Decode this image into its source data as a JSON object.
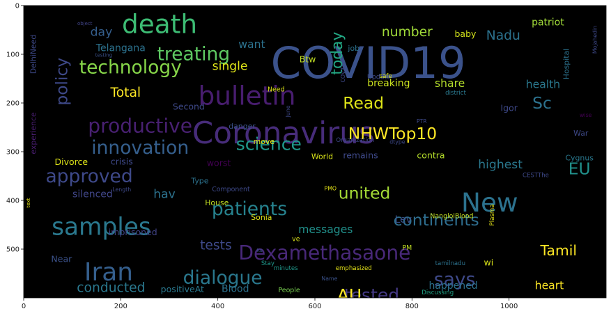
{
  "chart_data": {
    "type": "wordcloud",
    "background": "#000000",
    "xlim": [
      0,
      1200
    ],
    "ylim": [
      600,
      0
    ],
    "x_ticks": [
      0,
      200,
      400,
      600,
      800,
      1000
    ],
    "y_ticks": [
      0,
      100,
      200,
      300,
      400,
      500
    ],
    "grid": false,
    "words": [
      {
        "text": "COVID19",
        "x": 710,
        "y": 118,
        "size": 80,
        "color": "#3b528b"
      },
      {
        "text": "Coronavirus",
        "x": 535,
        "y": 262,
        "size": 56,
        "color": "#472c7a"
      },
      {
        "text": "death",
        "x": 280,
        "y": 38,
        "size": 48,
        "color": "#3dbc74"
      },
      {
        "text": "bulletin",
        "x": 460,
        "y": 185,
        "size": 48,
        "color": "#481d6f"
      },
      {
        "text": "Iran",
        "x": 175,
        "y": 548,
        "size": 46,
        "color": "#355f8d"
      },
      {
        "text": "samples",
        "x": 160,
        "y": 455,
        "size": 44,
        "color": "#2a788e"
      },
      {
        "text": "New",
        "x": 960,
        "y": 404,
        "size": 48,
        "color": "#2c728e"
      },
      {
        "text": "Dexamethasaone",
        "x": 620,
        "y": 508,
        "size": 36,
        "color": "#482878"
      },
      {
        "text": "productive",
        "x": 240,
        "y": 247,
        "size": 36,
        "color": "#482071"
      },
      {
        "text": "treating",
        "x": 350,
        "y": 100,
        "size": 34,
        "color": "#5ec962"
      },
      {
        "text": "technology",
        "x": 220,
        "y": 127,
        "size": 34,
        "color": "#86d549"
      },
      {
        "text": "innovation",
        "x": 240,
        "y": 292,
        "size": 34,
        "color": "#355f8d"
      },
      {
        "text": "approved",
        "x": 135,
        "y": 351,
        "size": 34,
        "color": "#3e4989"
      },
      {
        "text": "patients",
        "x": 465,
        "y": 418,
        "size": 34,
        "color": "#26828e"
      },
      {
        "text": "dialogue",
        "x": 410,
        "y": 559,
        "size": 34,
        "color": "#2a788e"
      },
      {
        "text": "science",
        "x": 505,
        "y": 284,
        "size": 32,
        "color": "#1f988b"
      },
      {
        "text": "NHWTop10",
        "x": 760,
        "y": 263,
        "size": 30,
        "color": "#fde725"
      },
      {
        "text": "Read",
        "x": 700,
        "y": 200,
        "size": 30,
        "color": "#dde318"
      },
      {
        "text": "united",
        "x": 702,
        "y": 385,
        "size": 30,
        "color": "#a5db36"
      },
      {
        "text": "continents",
        "x": 850,
        "y": 440,
        "size": 30,
        "color": "#2e6d8e"
      },
      {
        "text": "says",
        "x": 888,
        "y": 563,
        "size": 34,
        "color": "#3e4989"
      },
      {
        "text": "tested",
        "x": 717,
        "y": 594,
        "size": 32,
        "color": "#443983"
      },
      {
        "text": "AU",
        "x": 671,
        "y": 595,
        "size": 32,
        "color": "#fde725"
      },
      {
        "text": "EU",
        "x": 1145,
        "y": 335,
        "size": 30,
        "color": "#21918c"
      },
      {
        "text": "Sc",
        "x": 1068,
        "y": 200,
        "size": 30,
        "color": "#2c728e"
      },
      {
        "text": "policy",
        "x": 78,
        "y": 156,
        "size": 30,
        "color": "#3e4989",
        "rotate": -90
      },
      {
        "text": "today",
        "x": 647,
        "y": 98,
        "size": 28,
        "color": "#22a884",
        "rotate": -90
      },
      {
        "text": "number",
        "x": 790,
        "y": 55,
        "size": 24,
        "color": "#a0da39"
      },
      {
        "text": "Nadu",
        "x": 988,
        "y": 62,
        "size": 24,
        "color": "#2c728e"
      },
      {
        "text": "Total",
        "x": 210,
        "y": 179,
        "size": 24,
        "color": "#fde725"
      },
      {
        "text": "single",
        "x": 425,
        "y": 125,
        "size": 22,
        "color": "#dde318"
      },
      {
        "text": "want",
        "x": 470,
        "y": 80,
        "size": 20,
        "color": "#2c728e"
      },
      {
        "text": "day",
        "x": 160,
        "y": 55,
        "size": 22,
        "color": "#355f8d"
      },
      {
        "text": "Telangana",
        "x": 200,
        "y": 88,
        "size": 18,
        "color": "#2c728e"
      },
      {
        "text": "Tamil",
        "x": 1102,
        "y": 503,
        "size": 26,
        "color": "#fde725"
      },
      {
        "text": "highest",
        "x": 982,
        "y": 327,
        "size": 22,
        "color": "#2a788e"
      },
      {
        "text": "share",
        "x": 878,
        "y": 160,
        "size": 20,
        "color": "#b5de2b"
      },
      {
        "text": "health",
        "x": 1070,
        "y": 162,
        "size": 20,
        "color": "#2a788e"
      },
      {
        "text": "breaking",
        "x": 752,
        "y": 160,
        "size": 18,
        "color": "#cae11f"
      },
      {
        "text": "patriot",
        "x": 1080,
        "y": 35,
        "size": 18,
        "color": "#a0da39"
      },
      {
        "text": "baby",
        "x": 910,
        "y": 58,
        "size": 16,
        "color": "#d2e21b"
      },
      {
        "text": "Btw",
        "x": 585,
        "y": 110,
        "size": 16,
        "color": "#c2df23"
      },
      {
        "text": "job",
        "x": 680,
        "y": 88,
        "size": 14,
        "color": "#2c728e"
      },
      {
        "text": "Igor",
        "x": 1000,
        "y": 210,
        "size": 16,
        "color": "#3e4989"
      },
      {
        "text": "War",
        "x": 1148,
        "y": 262,
        "size": 14,
        "color": "#3e4989"
      },
      {
        "text": "Cygnus",
        "x": 1145,
        "y": 313,
        "size": 14,
        "color": "#2a788e"
      },
      {
        "text": "hav",
        "x": 290,
        "y": 388,
        "size": 22,
        "color": "#2c728e"
      },
      {
        "text": "Second",
        "x": 340,
        "y": 207,
        "size": 16,
        "color": "#3e4989"
      },
      {
        "text": "danger",
        "x": 450,
        "y": 248,
        "size": 14,
        "color": "#3b528b"
      },
      {
        "text": "move",
        "x": 495,
        "y": 279,
        "size": 14,
        "color": "#e5e419"
      },
      {
        "text": "World",
        "x": 615,
        "y": 310,
        "size": 14,
        "color": "#d8e219"
      },
      {
        "text": "remains",
        "x": 694,
        "y": 307,
        "size": 16,
        "color": "#3e4989"
      },
      {
        "text": "contra",
        "x": 839,
        "y": 307,
        "size": 16,
        "color": "#b5de2b"
      },
      {
        "text": "crisis",
        "x": 202,
        "y": 320,
        "size": 16,
        "color": "#3e4989"
      },
      {
        "text": "worst",
        "x": 402,
        "y": 323,
        "size": 16,
        "color": "#440154"
      },
      {
        "text": "Divorce",
        "x": 98,
        "y": 321,
        "size": 16,
        "color": "#dde318"
      },
      {
        "text": "Type",
        "x": 363,
        "y": 360,
        "size": 14,
        "color": "#2c728e"
      },
      {
        "text": "House",
        "x": 398,
        "y": 405,
        "size": 14,
        "color": "#c2df23"
      },
      {
        "text": "silenced",
        "x": 142,
        "y": 388,
        "size": 18,
        "color": "#404688"
      },
      {
        "text": "Sonia",
        "x": 490,
        "y": 435,
        "size": 14,
        "color": "#dde318"
      },
      {
        "text": "messages",
        "x": 622,
        "y": 460,
        "size": 20,
        "color": "#21918c"
      },
      {
        "text": "Lev",
        "x": 782,
        "y": 440,
        "size": 18,
        "color": "#3b528b"
      },
      {
        "text": "tests",
        "x": 396,
        "y": 493,
        "size": 24,
        "color": "#3e4989"
      },
      {
        "text": "imprisoned",
        "x": 225,
        "y": 465,
        "size": 16,
        "color": "#414487"
      },
      {
        "text": "Near",
        "x": 78,
        "y": 520,
        "size": 16,
        "color": "#3b528b"
      },
      {
        "text": "conducted",
        "x": 180,
        "y": 580,
        "size": 24,
        "color": "#2a788e"
      },
      {
        "text": "positiveAt",
        "x": 327,
        "y": 582,
        "size": 16,
        "color": "#2a788e"
      },
      {
        "text": "Blood",
        "x": 436,
        "y": 582,
        "size": 18,
        "color": "#2c728e"
      },
      {
        "text": "happened",
        "x": 885,
        "y": 576,
        "size": 18,
        "color": "#2c728e"
      },
      {
        "text": "heart",
        "x": 1083,
        "y": 575,
        "size": 20,
        "color": "#fde725"
      },
      {
        "text": "wi",
        "x": 958,
        "y": 527,
        "size": 16,
        "color": "#d8e219"
      },
      {
        "text": "PM",
        "x": 790,
        "y": 498,
        "size": 12,
        "color": "#c2df23"
      },
      {
        "text": "ve",
        "x": 561,
        "y": 480,
        "size": 12,
        "color": "#d8e219"
      },
      {
        "text": "People",
        "x": 547,
        "y": 585,
        "size": 12,
        "color": "#7ad151"
      },
      {
        "text": "NangloiBlood",
        "x": 882,
        "y": 433,
        "size": 12,
        "color": "#c2df23"
      },
      {
        "text": "emphasized",
        "x": 680,
        "y": 540,
        "size": 11,
        "color": "#e5e419"
      },
      {
        "text": "minutes",
        "x": 540,
        "y": 540,
        "size": 11,
        "color": "#1f988b"
      },
      {
        "text": "Stay",
        "x": 503,
        "y": 530,
        "size": 11,
        "color": "#1f988b"
      },
      {
        "text": "tamilnadu",
        "x": 879,
        "y": 530,
        "size": 11,
        "color": "#2c728e"
      },
      {
        "text": "Discussing",
        "x": 853,
        "y": 590,
        "size": 11,
        "color": "#20a386"
      },
      {
        "text": "Name",
        "x": 630,
        "y": 561,
        "size": 10,
        "color": "#3b528b"
      },
      {
        "text": "Ka",
        "x": 486,
        "y": 503,
        "size": 9,
        "color": "#3b528b"
      },
      {
        "text": "Component",
        "x": 427,
        "y": 378,
        "size": 12,
        "color": "#3e4989"
      },
      {
        "text": "PMO",
        "x": 632,
        "y": 376,
        "size": 10,
        "color": "#e5e419"
      },
      {
        "text": "CESTThe",
        "x": 1055,
        "y": 349,
        "size": 11,
        "color": "#3e4989"
      },
      {
        "text": "Length",
        "x": 202,
        "y": 378,
        "size": 10,
        "color": "#3e4989"
      },
      {
        "text": "Update",
        "x": 732,
        "y": 147,
        "size": 12,
        "color": "#3e4989"
      },
      {
        "text": "Need",
        "x": 520,
        "y": 173,
        "size": 12,
        "color": "#dde318"
      },
      {
        "text": "safe",
        "x": 746,
        "y": 146,
        "size": 11,
        "color": "#dde318"
      },
      {
        "text": "district",
        "x": 890,
        "y": 180,
        "size": 11,
        "color": "#2a788e"
      },
      {
        "text": "Organization",
        "x": 683,
        "y": 277,
        "size": 11,
        "color": "#3e4989"
      },
      {
        "text": "dtype",
        "x": 770,
        "y": 280,
        "size": 10,
        "color": "#3e4989"
      },
      {
        "text": "PTR",
        "x": 820,
        "y": 238,
        "size": 10,
        "color": "#3e4989"
      },
      {
        "text": "wise",
        "x": 1158,
        "y": 225,
        "size": 10,
        "color": "#440154"
      },
      {
        "text": "object",
        "x": 126,
        "y": 37,
        "size": 9,
        "color": "#414487"
      },
      {
        "text": "testing",
        "x": 165,
        "y": 102,
        "size": 9,
        "color": "#3b528b"
      },
      {
        "text": "DelhiNeed",
        "x": 20,
        "y": 100,
        "size": 14,
        "color": "#3e4989",
        "rotate": -90
      },
      {
        "text": "experience",
        "x": 20,
        "y": 262,
        "size": 14,
        "color": "#481d6f",
        "rotate": -90
      },
      {
        "text": "text",
        "x": 10,
        "y": 405,
        "size": 9,
        "color": "#e5e419",
        "rotate": -90
      },
      {
        "text": "June",
        "x": 545,
        "y": 217,
        "size": 10,
        "color": "#3e4989",
        "rotate": -90
      },
      {
        "text": "COVID",
        "x": 658,
        "y": 140,
        "size": 10,
        "color": "#3e4989",
        "rotate": -90
      },
      {
        "text": "Plasma",
        "x": 966,
        "y": 430,
        "size": 11,
        "color": "#e5e419",
        "rotate": -90
      },
      {
        "text": "Hospital",
        "x": 1118,
        "y": 120,
        "size": 14,
        "color": "#2c728e",
        "rotate": -90
      },
      {
        "text": "Mojahedin",
        "x": 1177,
        "y": 70,
        "size": 10,
        "color": "#3e4989",
        "rotate": -90
      }
    ]
  }
}
